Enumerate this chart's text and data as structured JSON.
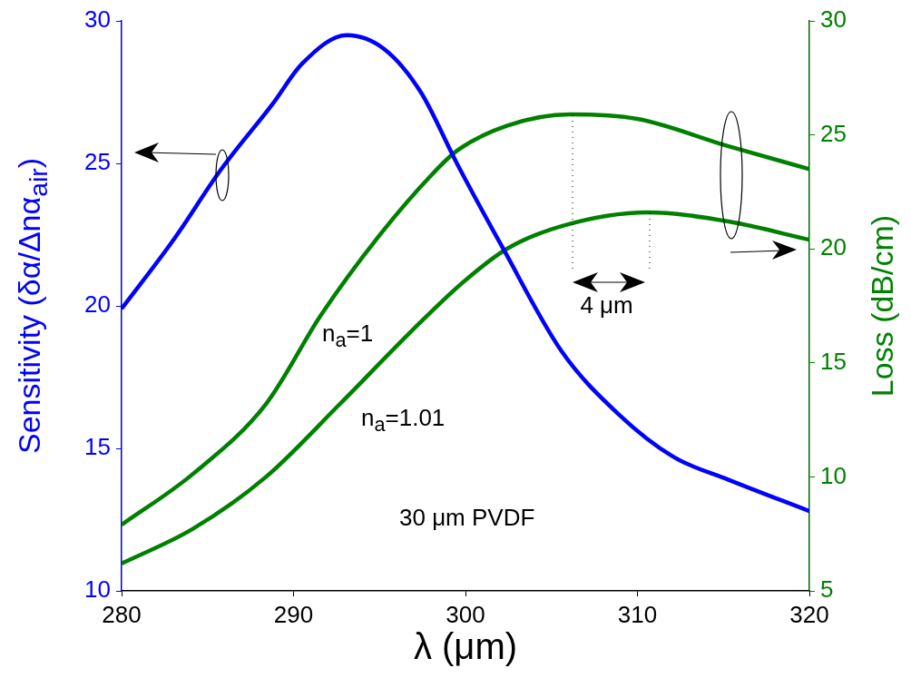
{
  "chart_data": {
    "type": "line",
    "xlabel": "λ (μm)",
    "ylabel": "Sensitivity (δα/Δnα$_{air}$)",
    "y2label": "Loss (dB/cm)",
    "xlim": [
      280,
      320
    ],
    "xticks": [
      280,
      290,
      300,
      310,
      320
    ],
    "ylim": [
      10,
      30
    ],
    "yticks": [
      10,
      15,
      20,
      25,
      30
    ],
    "y2lim": [
      5,
      30
    ],
    "y2ticks": [
      5,
      10,
      15,
      20,
      25,
      30
    ],
    "grid": false,
    "legend": false,
    "marker": "none",
    "line_style": "solid",
    "annotations": [
      "n$_{a}$=1",
      "n$_{a}$=1.01",
      {
        "text": "4 μm",
        "x": 306.1,
        "y": 26.7
      },
      "30 μm PVDF"
    ],
    "series": [
      {
        "color": "#0000ff",
        "axis": "y",
        "x": [
          280,
          283,
          285.8,
          288.8,
          290.5,
          293.1,
          295.3,
          297.4,
          299.5,
          302.2,
          305.6,
          308.9,
          312.1,
          315.3,
          320
        ],
        "values": [
          19.9,
          22.3,
          24.8,
          27.1,
          28.5,
          29.5,
          29,
          27.5,
          25,
          22,
          18.4,
          16.2,
          14.7,
          13.9,
          12.8
        ]
      },
      {
        "color": "#008000",
        "axis": "y2",
        "x": [
          280,
          284.1,
          288.4,
          291.6,
          294.9,
          298.1,
          299.5,
          302.4,
          306.1,
          310,
          315.3,
          320
        ],
        "values": [
          7.9,
          10.1,
          13.2,
          17.1,
          20.5,
          23.3,
          24.3,
          25.4,
          25.9,
          25.7,
          24.5,
          23.5
        ]
      },
      {
        "color": "#008000",
        "axis": "y2",
        "x": [
          280,
          284.1,
          288.4,
          292.7,
          297,
          299.8,
          302.4,
          305.6,
          310.6,
          315.3,
          320
        ],
        "values": [
          6.2,
          7.7,
          10,
          13.2,
          16.5,
          18.5,
          20,
          21,
          21.6,
          21.2,
          20.4
        ]
      }
    ]
  }
}
